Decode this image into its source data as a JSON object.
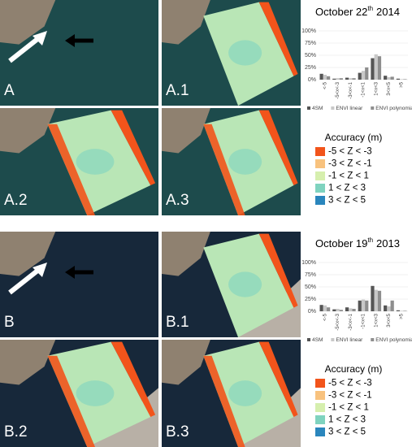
{
  "panels": {
    "top": [
      "A",
      "A.1",
      "A.2",
      "A.3"
    ],
    "bottom": [
      "B",
      "B.1",
      "B.2",
      "B.3"
    ]
  },
  "legend": {
    "title": "Accuracy (m)",
    "items": [
      {
        "label": "-5 < Z < -3",
        "color": "#f2541b"
      },
      {
        "label": "-3 < Z < -1",
        "color": "#f8c27e"
      },
      {
        "label": "-1 < Z <  1",
        "color": "#d6efae"
      },
      {
        "label": " 1 < Z <  3",
        "color": "#7fd3bf"
      },
      {
        "label": " 3 < Z <  5",
        "color": "#2a86bd"
      }
    ]
  },
  "chart_data": [
    {
      "type": "bar",
      "title_main": "October 22",
      "title_sup": "th",
      "title_year": "2014",
      "categories": [
        "<-5",
        "-5<x<-3",
        "-3<x<-1",
        "-1<x<1",
        "1<x<3",
        "3<x<5",
        ">5"
      ],
      "series": [
        {
          "name": "4SM",
          "color": "#555555",
          "values": [
            12,
            2,
            4,
            14,
            44,
            8,
            2
          ]
        },
        {
          "name": "ENVI linear",
          "color": "#c8c8c8",
          "values": [
            10,
            3,
            3,
            18,
            52,
            5,
            1
          ]
        },
        {
          "name": "ENVI polynomial",
          "color": "#8e8e8e",
          "values": [
            7,
            3,
            3,
            25,
            48,
            6,
            1
          ]
        }
      ],
      "ylim": [
        0,
        100
      ],
      "yticks": [
        {
          "value": 0,
          "label": "0%"
        },
        {
          "value": 25,
          "label": "25%"
        },
        {
          "value": 50,
          "label": "50%"
        },
        {
          "value": 75,
          "label": "75%"
        },
        {
          "value": 100,
          "label": "100%"
        }
      ]
    },
    {
      "type": "bar",
      "title_main": "October 19",
      "title_sup": "th",
      "title_year": "2013",
      "categories": [
        "<-5",
        "-5<x<-3",
        "-3<x<-1",
        "-1<x<1",
        "1<x<3",
        "3<x<5",
        ">5"
      ],
      "series": [
        {
          "name": "4SM",
          "color": "#555555",
          "values": [
            13,
            4,
            8,
            22,
            52,
            12,
            2
          ]
        },
        {
          "name": "ENVI linear",
          "color": "#c8c8c8",
          "values": [
            12,
            5,
            6,
            24,
            44,
            10,
            1
          ]
        },
        {
          "name": "ENVI polynomial",
          "color": "#8e8e8e",
          "values": [
            8,
            3,
            5,
            22,
            42,
            22,
            1
          ]
        }
      ],
      "ylim": [
        0,
        100
      ],
      "yticks": [
        {
          "value": 0,
          "label": "0%"
        },
        {
          "value": 25,
          "label": "25%"
        },
        {
          "value": 50,
          "label": "50%"
        },
        {
          "value": 75,
          "label": "75%"
        },
        {
          "value": 100,
          "label": "100%"
        }
      ]
    }
  ]
}
